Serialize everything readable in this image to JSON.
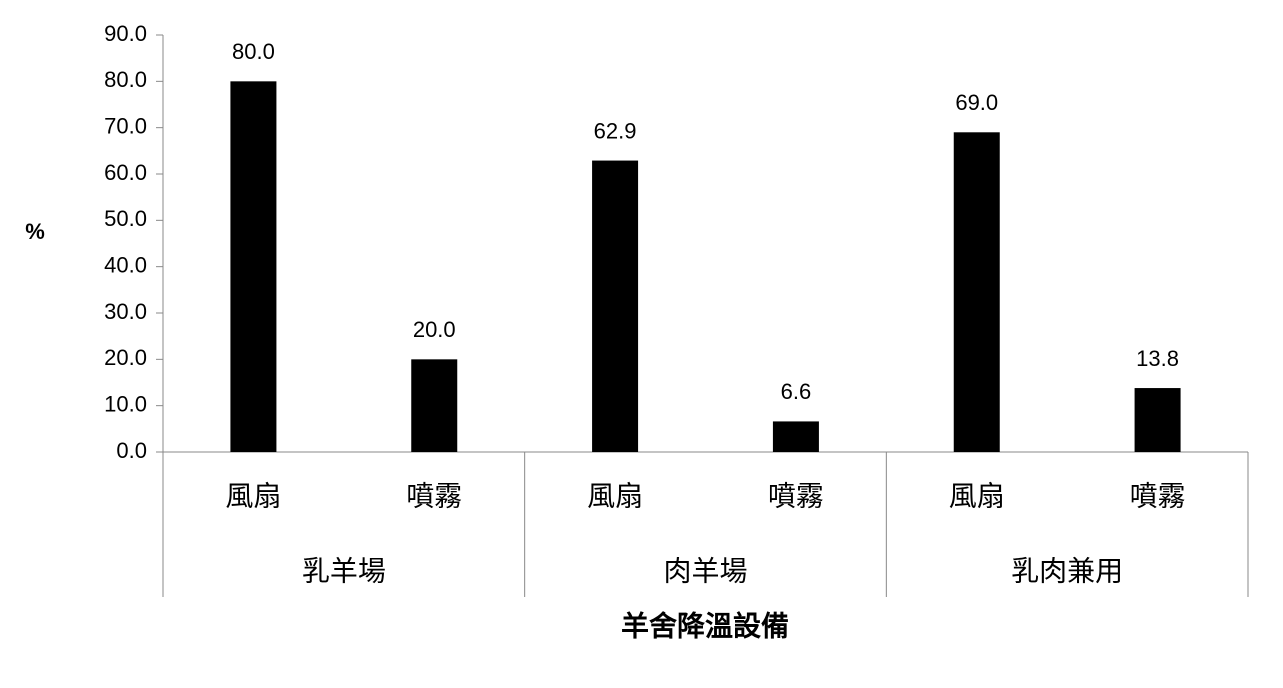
{
  "chart_data": {
    "type": "bar",
    "y_label": "%",
    "x_label": "羊舍降溫設備",
    "categories": [
      "風扇",
      "噴霧",
      "風扇",
      "噴霧",
      "風扇",
      "噴霧"
    ],
    "groups": [
      "乳羊場",
      "肉羊場",
      "乳肉兼用"
    ],
    "values": [
      80.0,
      20.0,
      62.9,
      6.6,
      69.0,
      13.8
    ],
    "value_labels": [
      "80.0",
      "20.0",
      "62.9",
      "6.6",
      "69.0",
      "13.8"
    ],
    "color": "#000000",
    "ylim": [
      0,
      90
    ],
    "yticks": [
      {
        "value": 0,
        "label": "0.0"
      },
      {
        "value": 10,
        "label": "10.0"
      },
      {
        "value": 20,
        "label": "20.0"
      },
      {
        "value": 30,
        "label": "30.0"
      },
      {
        "value": 40,
        "label": "40.0"
      },
      {
        "value": 50,
        "label": "50.0"
      },
      {
        "value": 60,
        "label": "60.0"
      },
      {
        "value": 70,
        "label": "70.0"
      },
      {
        "value": 80,
        "label": "80.0"
      },
      {
        "value": 90,
        "label": "90.0"
      }
    ],
    "grid": false
  }
}
